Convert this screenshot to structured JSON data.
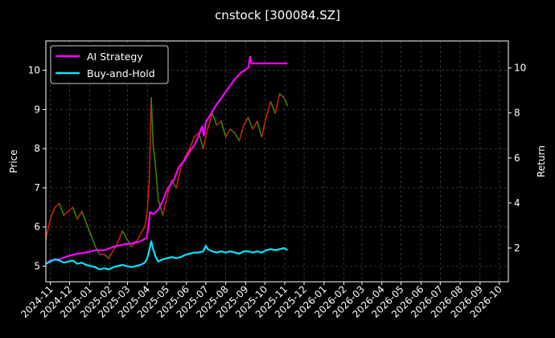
{
  "chart_data": {
    "type": "line",
    "title": "cnstock [300084.SZ]",
    "ylabel_left": "Price",
    "ylabel_right": "Return",
    "grid": true,
    "legend_position": "top-left",
    "x_ticks": [
      "2024-11",
      "2024-12",
      "2025-01",
      "2025-02",
      "2025-03",
      "2025-04",
      "2025-05",
      "2025-06",
      "2025-07",
      "2025-08",
      "2025-09",
      "2025-10",
      "2025-11",
      "2025-12",
      "2026-01",
      "2026-02",
      "2026-03",
      "2026-04",
      "2026-05",
      "2026-06",
      "2026-07",
      "2026-08",
      "2026-09",
      "2026-10"
    ],
    "x_range": [
      "2024-10-25",
      "2026-10-15"
    ],
    "left_axis": {
      "range": [
        4.6,
        10.75
      ],
      "ticks": [
        5,
        6,
        7,
        8,
        9,
        10
      ]
    },
    "right_axis": {
      "range": [
        0.5,
        11.2
      ],
      "ticks": [
        2,
        4,
        6,
        8,
        10
      ]
    },
    "price_series": {
      "name": "Price",
      "up_color": "#cc2200",
      "down_color": "#2a8a00",
      "points": [
        [
          "2024-10-25",
          5.7
        ],
        [
          "2024-11-01",
          6.2
        ],
        [
          "2024-11-08",
          6.5
        ],
        [
          "2024-11-15",
          6.6
        ],
        [
          "2024-11-22",
          6.3
        ],
        [
          "2024-11-29",
          6.4
        ],
        [
          "2024-12-06",
          6.5
        ],
        [
          "2024-12-13",
          6.2
        ],
        [
          "2024-12-20",
          6.4
        ],
        [
          "2024-12-27",
          6.1
        ],
        [
          "2025-01-03",
          5.8
        ],
        [
          "2025-01-10",
          5.5
        ],
        [
          "2025-01-17",
          5.3
        ],
        [
          "2025-01-24",
          5.3
        ],
        [
          "2025-01-31",
          5.2
        ],
        [
          "2025-02-07",
          5.4
        ],
        [
          "2025-02-14",
          5.6
        ],
        [
          "2025-02-21",
          5.9
        ],
        [
          "2025-02-28",
          5.7
        ],
        [
          "2025-03-07",
          5.5
        ],
        [
          "2025-03-14",
          5.6
        ],
        [
          "2025-03-21",
          5.8
        ],
        [
          "2025-03-28",
          6.0
        ],
        [
          "2025-04-01",
          6.4
        ],
        [
          "2025-04-04",
          7.2
        ],
        [
          "2025-04-07",
          9.3
        ],
        [
          "2025-04-10",
          8.1
        ],
        [
          "2025-04-14",
          7.5
        ],
        [
          "2025-04-18",
          6.7
        ],
        [
          "2025-04-25",
          6.3
        ],
        [
          "2025-05-02",
          6.8
        ],
        [
          "2025-05-09",
          7.2
        ],
        [
          "2025-05-16",
          7.0
        ],
        [
          "2025-05-23",
          7.5
        ],
        [
          "2025-05-30",
          7.8
        ],
        [
          "2025-06-06",
          8.0
        ],
        [
          "2025-06-13",
          8.3
        ],
        [
          "2025-06-20",
          8.4
        ],
        [
          "2025-06-27",
          8.0
        ],
        [
          "2025-07-04",
          8.5
        ],
        [
          "2025-07-11",
          8.9
        ],
        [
          "2025-07-18",
          8.6
        ],
        [
          "2025-07-25",
          8.7
        ],
        [
          "2025-08-01",
          8.3
        ],
        [
          "2025-08-08",
          8.5
        ],
        [
          "2025-08-15",
          8.4
        ],
        [
          "2025-08-22",
          8.2
        ],
        [
          "2025-08-29",
          8.6
        ],
        [
          "2025-09-05",
          8.8
        ],
        [
          "2025-09-12",
          8.5
        ],
        [
          "2025-09-19",
          8.7
        ],
        [
          "2025-09-26",
          8.3
        ],
        [
          "2025-10-03",
          8.8
        ],
        [
          "2025-10-10",
          9.2
        ],
        [
          "2025-10-17",
          8.9
        ],
        [
          "2025-10-24",
          9.4
        ],
        [
          "2025-10-31",
          9.3
        ],
        [
          "2025-11-05",
          9.1
        ]
      ]
    },
    "series": [
      {
        "name": "AI Strategy",
        "color": "#ff00ff",
        "axis": "right",
        "points": [
          [
            "2024-10-25",
            1.3
          ],
          [
            "2024-11-01",
            1.45
          ],
          [
            "2024-11-15",
            1.5
          ],
          [
            "2024-11-29",
            1.65
          ],
          [
            "2024-12-13",
            1.75
          ],
          [
            "2024-12-27",
            1.8
          ],
          [
            "2025-01-10",
            1.9
          ],
          [
            "2025-01-24",
            1.9
          ],
          [
            "2025-02-07",
            2.05
          ],
          [
            "2025-02-21",
            2.15
          ],
          [
            "2025-03-07",
            2.2
          ],
          [
            "2025-03-21",
            2.3
          ],
          [
            "2025-03-31",
            2.45
          ],
          [
            "2025-04-03",
            3.0
          ],
          [
            "2025-04-05",
            3.6
          ],
          [
            "2025-04-10",
            3.5
          ],
          [
            "2025-04-18",
            3.7
          ],
          [
            "2025-04-25",
            4.1
          ],
          [
            "2025-05-02",
            4.6
          ],
          [
            "2025-05-12",
            5.0
          ],
          [
            "2025-05-20",
            5.6
          ],
          [
            "2025-05-29",
            5.9
          ],
          [
            "2025-06-06",
            6.3
          ],
          [
            "2025-06-14",
            6.6
          ],
          [
            "2025-06-20",
            7.0
          ],
          [
            "2025-06-25",
            7.4
          ],
          [
            "2025-06-28",
            7.0
          ],
          [
            "2025-07-01",
            7.6
          ],
          [
            "2025-07-08",
            7.9
          ],
          [
            "2025-07-16",
            8.3
          ],
          [
            "2025-07-26",
            8.7
          ],
          [
            "2025-08-05",
            9.1
          ],
          [
            "2025-08-15",
            9.5
          ],
          [
            "2025-08-25",
            9.8
          ],
          [
            "2025-09-05",
            10.0
          ],
          [
            "2025-09-08",
            10.5
          ],
          [
            "2025-09-10",
            10.2
          ],
          [
            "2025-09-20",
            10.2
          ],
          [
            "2025-10-05",
            10.2
          ],
          [
            "2025-10-20",
            10.2
          ],
          [
            "2025-11-05",
            10.2
          ]
        ]
      },
      {
        "name": "Buy-and-Hold",
        "color": "#00e5ff",
        "axis": "right",
        "points": [
          [
            "2024-10-25",
            1.3
          ],
          [
            "2024-11-01",
            1.4
          ],
          [
            "2024-11-08",
            1.5
          ],
          [
            "2024-11-15",
            1.45
          ],
          [
            "2024-11-22",
            1.35
          ],
          [
            "2024-11-29",
            1.4
          ],
          [
            "2024-12-06",
            1.45
          ],
          [
            "2024-12-13",
            1.3
          ],
          [
            "2024-12-20",
            1.35
          ],
          [
            "2024-12-27",
            1.25
          ],
          [
            "2025-01-03",
            1.2
          ],
          [
            "2025-01-10",
            1.15
          ],
          [
            "2025-01-17",
            1.05
          ],
          [
            "2025-01-24",
            1.1
          ],
          [
            "2025-01-31",
            1.05
          ],
          [
            "2025-02-07",
            1.15
          ],
          [
            "2025-02-14",
            1.2
          ],
          [
            "2025-02-21",
            1.25
          ],
          [
            "2025-02-28",
            1.2
          ],
          [
            "2025-03-07",
            1.15
          ],
          [
            "2025-03-14",
            1.2
          ],
          [
            "2025-03-21",
            1.25
          ],
          [
            "2025-03-28",
            1.35
          ],
          [
            "2025-04-01",
            1.55
          ],
          [
            "2025-04-04",
            1.9
          ],
          [
            "2025-04-07",
            2.3
          ],
          [
            "2025-04-10",
            1.95
          ],
          [
            "2025-04-14",
            1.6
          ],
          [
            "2025-04-18",
            1.4
          ],
          [
            "2025-04-25",
            1.5
          ],
          [
            "2025-05-02",
            1.55
          ],
          [
            "2025-05-09",
            1.6
          ],
          [
            "2025-05-16",
            1.55
          ],
          [
            "2025-05-23",
            1.6
          ],
          [
            "2025-05-30",
            1.7
          ],
          [
            "2025-06-06",
            1.75
          ],
          [
            "2025-06-13",
            1.8
          ],
          [
            "2025-06-20",
            1.8
          ],
          [
            "2025-06-27",
            1.85
          ],
          [
            "2025-07-01",
            2.1
          ],
          [
            "2025-07-04",
            1.95
          ],
          [
            "2025-07-11",
            1.85
          ],
          [
            "2025-07-18",
            1.8
          ],
          [
            "2025-07-25",
            1.85
          ],
          [
            "2025-08-01",
            1.8
          ],
          [
            "2025-08-08",
            1.85
          ],
          [
            "2025-08-15",
            1.8
          ],
          [
            "2025-08-22",
            1.75
          ],
          [
            "2025-08-29",
            1.85
          ],
          [
            "2025-09-05",
            1.85
          ],
          [
            "2025-09-12",
            1.8
          ],
          [
            "2025-09-19",
            1.85
          ],
          [
            "2025-09-26",
            1.8
          ],
          [
            "2025-10-03",
            1.9
          ],
          [
            "2025-10-10",
            1.95
          ],
          [
            "2025-10-17",
            1.9
          ],
          [
            "2025-10-24",
            1.95
          ],
          [
            "2025-10-31",
            2.0
          ],
          [
            "2025-11-05",
            1.9
          ]
        ]
      }
    ]
  }
}
